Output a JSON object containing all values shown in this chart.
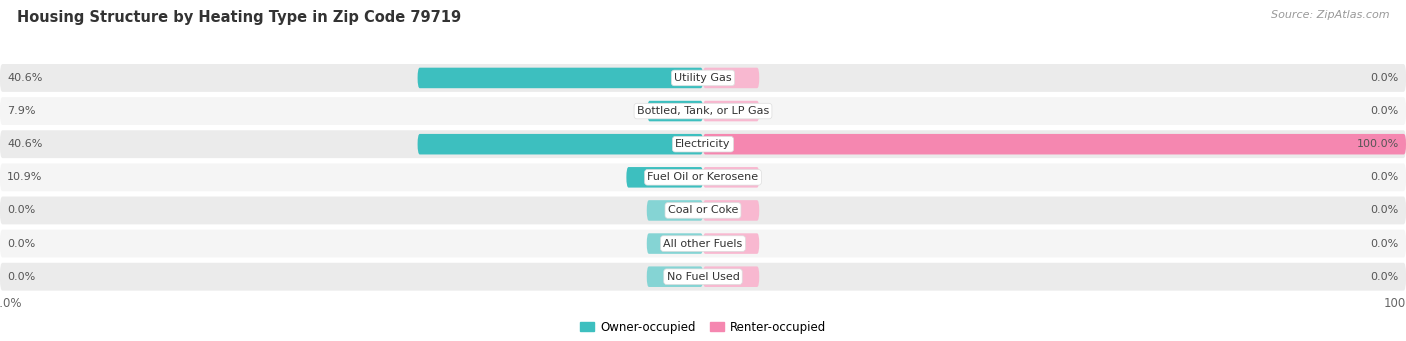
{
  "title": "Housing Structure by Heating Type in Zip Code 79719",
  "source": "Source: ZipAtlas.com",
  "categories": [
    "Utility Gas",
    "Bottled, Tank, or LP Gas",
    "Electricity",
    "Fuel Oil or Kerosene",
    "Coal or Coke",
    "All other Fuels",
    "No Fuel Used"
  ],
  "owner_values": [
    40.6,
    7.9,
    40.6,
    10.9,
    0.0,
    0.0,
    0.0
  ],
  "renter_values": [
    0.0,
    0.0,
    100.0,
    0.0,
    0.0,
    0.0,
    0.0
  ],
  "owner_color": "#3dbfbf",
  "renter_color": "#f587b0",
  "owner_stub_color": "#85d4d4",
  "renter_stub_color": "#f8b8d0",
  "owner_label": "Owner-occupied",
  "renter_label": "Renter-occupied",
  "axis_max": 100.0,
  "row_bg_color": "#ebebeb",
  "row_alt_bg_color": "#f5f5f5",
  "row_bg_alpha": 1.0,
  "title_fontsize": 10.5,
  "source_fontsize": 8,
  "label_fontsize": 8,
  "cat_fontsize": 8,
  "tick_fontsize": 8.5,
  "stub_size": 8.0
}
